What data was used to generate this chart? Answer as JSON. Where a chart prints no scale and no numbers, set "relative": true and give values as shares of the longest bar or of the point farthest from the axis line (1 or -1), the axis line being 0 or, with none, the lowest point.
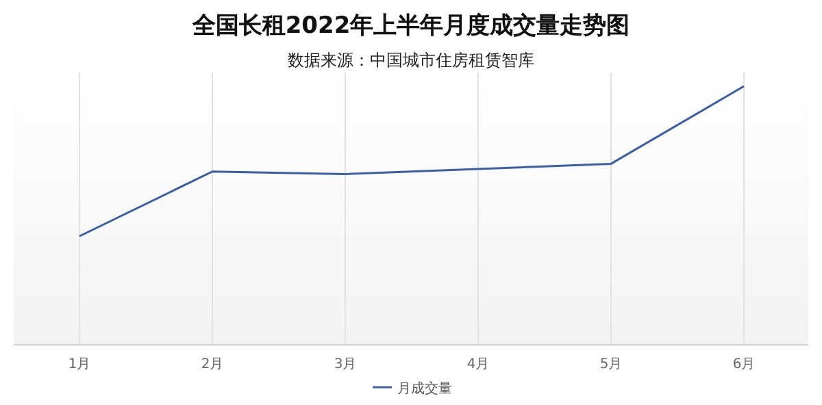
{
  "chart_data": {
    "type": "line",
    "title": "全国长租2022年上半年月度成交量走势图",
    "subtitle": "数据来源：中国城市住房租赁智库",
    "categories": [
      "1月",
      "2月",
      "3月",
      "4月",
      "5月",
      "6月"
    ],
    "series": [
      {
        "name": "月成交量",
        "color": "#3a5ea8",
        "values": [
          0.42,
          0.67,
          0.66,
          0.68,
          0.7,
          1
        ]
      }
    ],
    "relative": true,
    "grid": "x",
    "legend": "bottom",
    "marker": "none",
    "line_style": "solid"
  }
}
